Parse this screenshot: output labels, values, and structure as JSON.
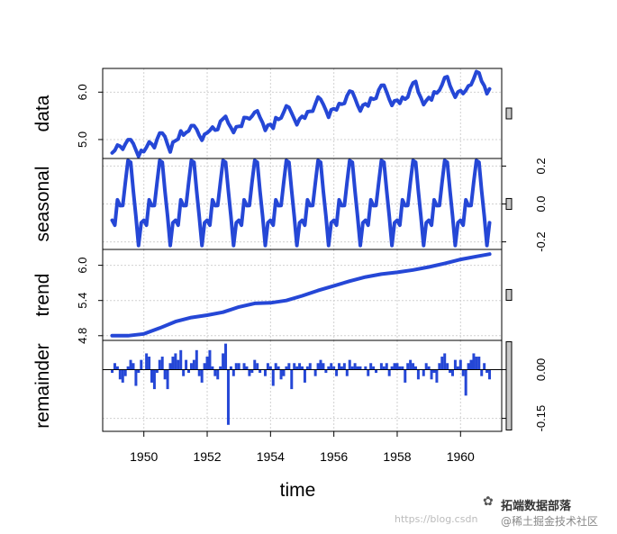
{
  "chart_data": {
    "type": "line",
    "title": "",
    "xlabel": "time",
    "xlim": [
      1948.7,
      1961.3
    ],
    "x_ticks": [
      1950,
      1952,
      1954,
      1956,
      1958,
      1960
    ],
    "x_tick_labels": [
      "1950",
      "1952",
      "1954",
      "1956",
      "1958",
      "1960"
    ],
    "grid": true,
    "series_color": "#2547d6",
    "panels": [
      {
        "name": "data",
        "ylabel": "data",
        "tick_side": "left",
        "ylim": [
          4.6,
          6.5
        ],
        "ticks": [
          5.0,
          6.0
        ],
        "tick_labels": [
          "5.0",
          "6.0"
        ],
        "mark": "line",
        "scale_bar_height": 0.12,
        "x": [
          1949.0,
          1949.0833,
          1949.1667,
          1949.25,
          1949.3333,
          1949.4167,
          1949.5,
          1949.5833,
          1949.6667,
          1949.75,
          1949.8333,
          1949.9167,
          1950.0,
          1950.0833,
          1950.1667,
          1950.25,
          1950.3333,
          1950.4167,
          1950.5,
          1950.5833,
          1950.6667,
          1950.75,
          1950.8333,
          1950.9167,
          1951.0,
          1951.0833,
          1951.1667,
          1951.25,
          1951.3333,
          1951.4167,
          1951.5,
          1951.5833,
          1951.6667,
          1951.75,
          1951.8333,
          1951.9167,
          1952.0,
          1952.0833,
          1952.1667,
          1952.25,
          1952.3333,
          1952.4167,
          1952.5,
          1952.5833,
          1952.6667,
          1952.75,
          1952.8333,
          1952.9167,
          1953.0,
          1953.0833,
          1953.1667,
          1953.25,
          1953.3333,
          1953.4167,
          1953.5,
          1953.5833,
          1953.6667,
          1953.75,
          1953.8333,
          1953.9167,
          1954.0,
          1954.0833,
          1954.1667,
          1954.25,
          1954.3333,
          1954.4167,
          1954.5,
          1954.5833,
          1954.6667,
          1954.75,
          1954.8333,
          1954.9167,
          1955.0,
          1955.0833,
          1955.1667,
          1955.25,
          1955.3333,
          1955.4167,
          1955.5,
          1955.5833,
          1955.6667,
          1955.75,
          1955.8333,
          1955.9167,
          1956.0,
          1956.0833,
          1956.1667,
          1956.25,
          1956.3333,
          1956.4167,
          1956.5,
          1956.5833,
          1956.6667,
          1956.75,
          1956.8333,
          1956.9167,
          1957.0,
          1957.0833,
          1957.1667,
          1957.25,
          1957.3333,
          1957.4167,
          1957.5,
          1957.5833,
          1957.6667,
          1957.75,
          1957.8333,
          1957.9167,
          1958.0,
          1958.0833,
          1958.1667,
          1958.25,
          1958.3333,
          1958.4167,
          1958.5,
          1958.5833,
          1958.6667,
          1958.75,
          1958.8333,
          1958.9167,
          1959.0,
          1959.0833,
          1959.1667,
          1959.25,
          1959.3333,
          1959.4167,
          1959.5,
          1959.5833,
          1959.6667,
          1959.75,
          1959.8333,
          1959.9167,
          1960.0,
          1960.0833,
          1960.1667,
          1960.25,
          1960.3333,
          1960.4167,
          1960.5,
          1960.5833,
          1960.6667,
          1960.75,
          1960.8333,
          1960.9167
        ],
        "y": [
          4.718,
          4.771,
          4.883,
          4.86,
          4.796,
          4.905,
          4.997,
          4.997,
          4.913,
          4.779,
          4.644,
          4.771,
          4.745,
          4.836,
          4.949,
          4.905,
          4.828,
          5.004,
          5.136,
          5.136,
          5.063,
          4.89,
          4.736,
          4.942,
          4.977,
          5.011,
          5.182,
          5.094,
          5.147,
          5.182,
          5.293,
          5.293,
          5.215,
          5.088,
          4.984,
          5.112,
          5.142,
          5.193,
          5.263,
          5.199,
          5.209,
          5.384,
          5.438,
          5.489,
          5.342,
          5.252,
          5.147,
          5.268,
          5.278,
          5.278,
          5.464,
          5.46,
          5.434,
          5.493,
          5.576,
          5.606,
          5.468,
          5.352,
          5.193,
          5.303,
          5.318,
          5.236,
          5.46,
          5.425,
          5.455,
          5.576,
          5.71,
          5.68,
          5.557,
          5.434,
          5.313,
          5.434,
          5.489,
          5.451,
          5.587,
          5.595,
          5.598,
          5.753,
          5.897,
          5.849,
          5.743,
          5.613,
          5.468,
          5.628,
          5.649,
          5.624,
          5.759,
          5.746,
          5.762,
          5.924,
          6.023,
          6.004,
          5.872,
          5.724,
          5.602,
          5.724,
          5.753,
          5.707,
          5.875,
          5.852,
          5.872,
          6.045,
          6.142,
          6.146,
          6.001,
          5.849,
          5.72,
          5.817,
          5.829,
          5.762,
          5.892,
          5.852,
          5.894,
          6.075,
          6.196,
          6.225,
          6.001,
          5.883,
          5.737,
          5.82,
          5.886,
          5.835,
          6.006,
          5.981,
          6.04,
          6.157,
          6.306,
          6.326,
          6.138,
          6.009,
          5.892,
          6.004,
          6.033,
          5.969,
          6.038,
          6.133,
          6.157,
          6.282,
          6.433,
          6.407,
          6.23,
          6.133,
          5.966,
          6.068
        ]
      },
      {
        "name": "seasonal",
        "ylabel": "seasonal",
        "tick_side": "right",
        "ylim": [
          -0.24,
          0.24
        ],
        "ticks": [
          -0.2,
          0.0,
          0.2
        ],
        "tick_labels": [
          "-0.2",
          "0.0",
          "0.2"
        ],
        "mark": "line",
        "scale_bar_height": 0.12,
        "pattern": [
          -0.086,
          -0.112,
          0.022,
          -0.009,
          -0.008,
          0.115,
          0.229,
          0.22,
          0.07,
          -0.066,
          -0.219,
          -0.099
        ]
      },
      {
        "name": "trend",
        "ylabel": "trend",
        "tick_side": "left",
        "ylim": [
          4.72,
          6.27
        ],
        "ticks": [
          4.8,
          5.4,
          6.0
        ],
        "tick_labels": [
          "4.8",
          "5.4",
          "6.0"
        ],
        "mark": "line",
        "scale_bar_height": 0.12,
        "knots_x": [
          1949.0,
          1949.5,
          1950.0,
          1950.5,
          1951.0,
          1951.5,
          1952.0,
          1952.5,
          1953.0,
          1953.5,
          1954.0,
          1954.5,
          1955.0,
          1955.5,
          1956.0,
          1956.5,
          1957.0,
          1957.5,
          1958.0,
          1958.5,
          1959.0,
          1959.5,
          1960.0,
          1960.5,
          1960.92
        ],
        "knots_y": [
          4.8,
          4.8,
          4.83,
          4.93,
          5.04,
          5.11,
          5.15,
          5.2,
          5.29,
          5.35,
          5.36,
          5.4,
          5.48,
          5.57,
          5.65,
          5.73,
          5.8,
          5.85,
          5.88,
          5.92,
          5.97,
          6.03,
          6.1,
          6.15,
          6.19
        ]
      },
      {
        "name": "remainder",
        "ylabel": "remainder",
        "tick_side": "right",
        "ylim": [
          -0.19,
          0.09
        ],
        "ticks": [
          -0.15,
          0.0
        ],
        "tick_labels": [
          "-0.15",
          "0.00"
        ],
        "mark": "h",
        "zero_line": true,
        "scale_bar_height": 0.97,
        "x": [
          1949.0,
          1949.0833,
          1949.1667,
          1949.25,
          1949.3333,
          1949.4167,
          1949.5,
          1949.5833,
          1949.6667,
          1949.75,
          1949.8333,
          1949.9167,
          1950.0,
          1950.0833,
          1950.1667,
          1950.25,
          1950.3333,
          1950.4167,
          1950.5,
          1950.5833,
          1950.6667,
          1950.75,
          1950.8333,
          1950.9167,
          1951.0,
          1951.0833,
          1951.1667,
          1951.25,
          1951.3333,
          1951.4167,
          1951.5,
          1951.5833,
          1951.6667,
          1951.75,
          1951.8333,
          1951.9167,
          1952.0,
          1952.0833,
          1952.1667,
          1952.25,
          1952.3333,
          1952.4167,
          1952.5,
          1952.5833,
          1952.6667,
          1952.75,
          1952.8333,
          1952.9167,
          1953.0,
          1953.0833,
          1953.1667,
          1953.25,
          1953.3333,
          1953.4167,
          1953.5,
          1953.5833,
          1953.6667,
          1953.75,
          1953.8333,
          1953.9167,
          1954.0,
          1954.0833,
          1954.1667,
          1954.25,
          1954.3333,
          1954.4167,
          1954.5,
          1954.5833,
          1954.6667,
          1954.75,
          1954.8333,
          1954.9167,
          1955.0,
          1955.0833,
          1955.1667,
          1955.25,
          1955.3333,
          1955.4167,
          1955.5,
          1955.5833,
          1955.6667,
          1955.75,
          1955.8333,
          1955.9167,
          1956.0,
          1956.0833,
          1956.1667,
          1956.25,
          1956.3333,
          1956.4167,
          1956.5,
          1956.5833,
          1956.6667,
          1956.75,
          1956.8333,
          1956.9167,
          1957.0,
          1957.0833,
          1957.1667,
          1957.25,
          1957.3333,
          1957.4167,
          1957.5,
          1957.5833,
          1957.6667,
          1957.75,
          1957.8333,
          1957.9167,
          1958.0,
          1958.0833,
          1958.1667,
          1958.25,
          1958.3333,
          1958.4167,
          1958.5,
          1958.5833,
          1958.6667,
          1958.75,
          1958.8333,
          1958.9167,
          1959.0,
          1959.0833,
          1959.1667,
          1959.25,
          1959.3333,
          1959.4167,
          1959.5,
          1959.5833,
          1959.6667,
          1959.75,
          1959.8333,
          1959.9167,
          1960.0,
          1960.0833,
          1960.1667,
          1960.25,
          1960.3333,
          1960.4167,
          1960.5,
          1960.5833,
          1960.6667,
          1960.75,
          1960.8333,
          1960.9167
        ],
        "y": [
          -0.01,
          0.02,
          0.01,
          -0.03,
          -0.04,
          -0.02,
          0.01,
          0.03,
          0.02,
          -0.05,
          -0.01,
          0.03,
          0.0,
          0.05,
          0.04,
          -0.04,
          -0.06,
          -0.01,
          0.03,
          0.04,
          -0.03,
          -0.06,
          0.02,
          0.04,
          0.05,
          0.03,
          0.06,
          -0.02,
          0.03,
          -0.01,
          0.02,
          0.03,
          0.06,
          -0.02,
          -0.04,
          0.02,
          0.04,
          0.06,
          0.01,
          -0.02,
          -0.03,
          0.01,
          0.05,
          0.08,
          -0.17,
          0.01,
          -0.02,
          0.02,
          0.02,
          0.0,
          0.02,
          0.01,
          -0.02,
          -0.01,
          0.03,
          0.02,
          -0.01,
          0.0,
          -0.02,
          0.02,
          0.01,
          -0.05,
          0.02,
          0.01,
          -0.03,
          -0.02,
          0.01,
          0.02,
          -0.06,
          0.02,
          0.01,
          0.02,
          0.01,
          -0.04,
          0.01,
          0.02,
          0.0,
          -0.02,
          0.02,
          0.03,
          0.02,
          -0.01,
          0.01,
          0.02,
          0.01,
          -0.02,
          0.02,
          0.01,
          0.02,
          -0.02,
          0.03,
          0.01,
          0.02,
          0.01,
          0.01,
          0.0,
          0.01,
          -0.02,
          0.02,
          0.01,
          -0.01,
          0.0,
          0.02,
          0.01,
          0.02,
          -0.02,
          0.01,
          0.02,
          0.02,
          0.01,
          0.01,
          -0.04,
          0.02,
          0.03,
          0.02,
          0.01,
          -0.03,
          0.0,
          -0.02,
          0.02,
          0.01,
          -0.03,
          -0.01,
          -0.04,
          0.02,
          0.04,
          0.05,
          0.02,
          -0.01,
          -0.02,
          0.03,
          0.01,
          0.03,
          -0.02,
          -0.08,
          0.02,
          0.03,
          0.05,
          0.04,
          0.04,
          -0.02,
          0.02,
          -0.01,
          -0.03
        ]
      }
    ]
  },
  "watermark": {
    "brand": "拓端数据部落",
    "url": "https://blog.csdn",
    "community": "@稀土掘金技术社区"
  }
}
